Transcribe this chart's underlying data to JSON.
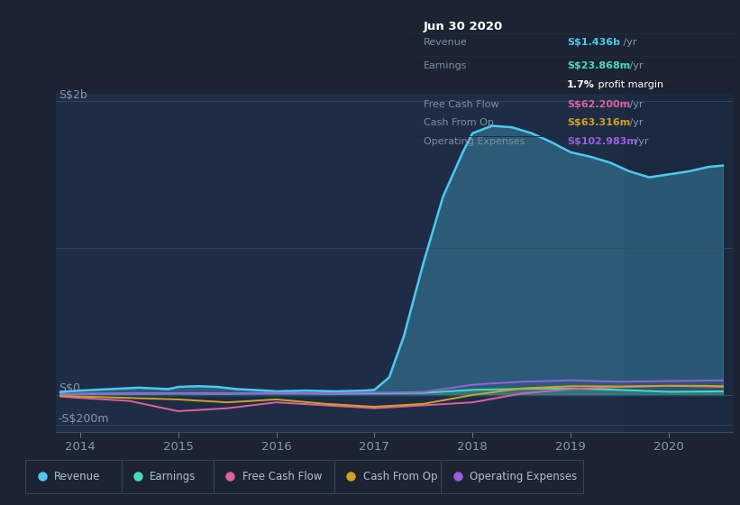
{
  "bg_color": "#1c2333",
  "plot_bg": "#1e2d45",
  "highlight_bg": "#1a2840",
  "ylabel_top": "S$2b",
  "ylabel_zero": "S$0",
  "ylabel_bottom": "-S$200m",
  "x_ticks": [
    "2014",
    "2015",
    "2016",
    "2017",
    "2018",
    "2019",
    "2020"
  ],
  "x_tick_pos": [
    2014,
    2015,
    2016,
    2017,
    2018,
    2019,
    2020
  ],
  "legend_items": [
    "Revenue",
    "Earnings",
    "Free Cash Flow",
    "Cash From Op",
    "Operating Expenses"
  ],
  "legend_colors": [
    "#4dc8f0",
    "#4adbb5",
    "#e060a0",
    "#d4a020",
    "#9b5fe0"
  ],
  "table_title": "Jun 30 2020",
  "table_bg": "#0a0e17",
  "table_label_color": "#7a8fa0",
  "table_rows": [
    {
      "label": "Revenue",
      "value": "S$1.436b /yr",
      "value_color": "#4dc8f0",
      "has_sep": true
    },
    {
      "label": "Earnings",
      "value": "S$23.868m /yr",
      "value_color": "#4adbb5",
      "has_sep": false
    },
    {
      "label": "",
      "value": "1.7% profit margin",
      "value_color": "#cccccc",
      "has_sep": true
    },
    {
      "label": "Free Cash Flow",
      "value": "S$62.200m /yr",
      "value_color": "#e060a0",
      "has_sep": true
    },
    {
      "label": "Cash From Op",
      "value": "S$63.316m /yr",
      "value_color": "#d4a020",
      "has_sep": true
    },
    {
      "label": "Operating Expenses",
      "value": "S$102.983m /yr",
      "value_color": "#9b5fe0",
      "has_sep": false
    }
  ],
  "revenue_x": [
    2013.8,
    2014.0,
    2014.3,
    2014.6,
    2014.9,
    2015.0,
    2015.2,
    2015.4,
    2015.6,
    2015.9,
    2016.0,
    2016.3,
    2016.6,
    2016.9,
    2017.0,
    2017.15,
    2017.3,
    2017.5,
    2017.7,
    2017.9,
    2018.0,
    2018.2,
    2018.4,
    2018.6,
    2018.8,
    2019.0,
    2019.2,
    2019.4,
    2019.6,
    2019.8,
    2020.0,
    2020.2,
    2020.4,
    2020.55
  ],
  "revenue_y": [
    0.02,
    0.03,
    0.04,
    0.05,
    0.04,
    0.055,
    0.06,
    0.055,
    0.04,
    0.03,
    0.025,
    0.03,
    0.025,
    0.03,
    0.035,
    0.12,
    0.4,
    0.9,
    1.35,
    1.65,
    1.78,
    1.83,
    1.82,
    1.78,
    1.72,
    1.65,
    1.62,
    1.58,
    1.52,
    1.48,
    1.5,
    1.52,
    1.55,
    1.56
  ],
  "earnings_x": [
    2013.8,
    2014.0,
    2014.5,
    2015.0,
    2015.5,
    2016.0,
    2016.5,
    2017.0,
    2017.5,
    2018.0,
    2018.5,
    2019.0,
    2019.5,
    2020.0,
    2020.4,
    2020.55
  ],
  "earnings_y": [
    0.005,
    0.008,
    0.01,
    0.012,
    0.01,
    0.015,
    0.01,
    0.012,
    0.015,
    0.035,
    0.042,
    0.045,
    0.035,
    0.022,
    0.024,
    0.025
  ],
  "fcf_x": [
    2013.8,
    2014.0,
    2014.5,
    2015.0,
    2015.5,
    2016.0,
    2016.5,
    2017.0,
    2017.5,
    2018.0,
    2018.5,
    2019.0,
    2019.5,
    2020.0,
    2020.4,
    2020.55
  ],
  "fcf_y": [
    -0.01,
    -0.02,
    -0.04,
    -0.11,
    -0.09,
    -0.05,
    -0.07,
    -0.09,
    -0.07,
    -0.05,
    0.01,
    0.04,
    0.055,
    0.062,
    0.058,
    0.055
  ],
  "cashop_x": [
    2013.8,
    2014.0,
    2014.5,
    2015.0,
    2015.5,
    2016.0,
    2016.5,
    2017.0,
    2017.5,
    2018.0,
    2018.5,
    2019.0,
    2019.5,
    2020.0,
    2020.4,
    2020.55
  ],
  "cashop_y": [
    -0.005,
    -0.01,
    -0.02,
    -0.03,
    -0.05,
    -0.03,
    -0.06,
    -0.08,
    -0.06,
    0.0,
    0.045,
    0.06,
    0.058,
    0.063,
    0.062,
    0.06
  ],
  "opex_x": [
    2013.8,
    2014.0,
    2014.5,
    2015.0,
    2015.5,
    2016.0,
    2016.5,
    2017.0,
    2017.5,
    2018.0,
    2018.5,
    2019.0,
    2019.5,
    2020.0,
    2020.4,
    2020.55
  ],
  "opex_y": [
    0.005,
    0.008,
    0.01,
    0.012,
    0.01,
    0.015,
    0.012,
    0.016,
    0.02,
    0.07,
    0.09,
    0.1,
    0.09,
    0.095,
    0.098,
    0.1
  ],
  "ylim_min": -0.25,
  "ylim_max": 2.05,
  "xlim_min": 2013.75,
  "xlim_max": 2020.65,
  "highlight_start": 2019.55
}
